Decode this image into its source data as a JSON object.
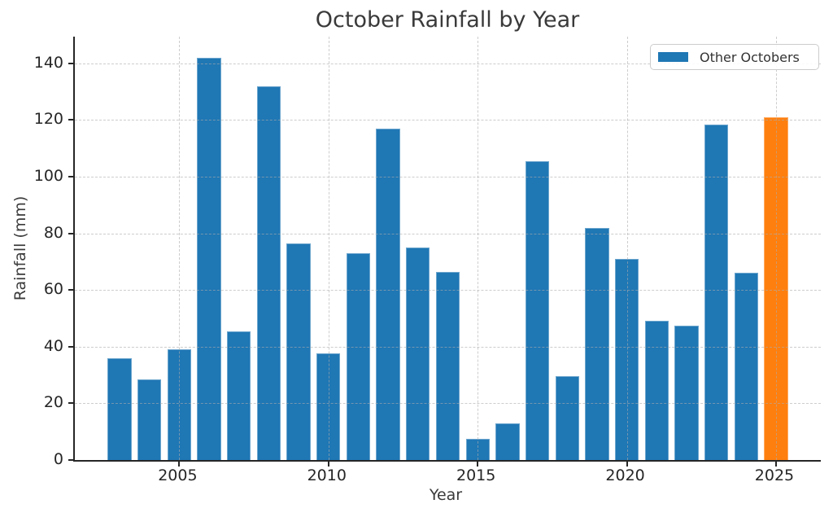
{
  "chart_data": {
    "type": "bar",
    "title": "October Rainfall by Year",
    "xlabel": "Year",
    "ylabel": "Rainfall (mm)",
    "categories": [
      2003,
      2004,
      2005,
      2006,
      2007,
      2008,
      2009,
      2010,
      2011,
      2012,
      2013,
      2014,
      2015,
      2016,
      2017,
      2018,
      2019,
      2020,
      2021,
      2022,
      2023,
      2024,
      2025
    ],
    "values": [
      36,
      28.5,
      39,
      142,
      45.5,
      132,
      76.5,
      37.5,
      73,
      117,
      75,
      66.5,
      7.6,
      13,
      105.5,
      29.5,
      82,
      71,
      49,
      47.5,
      118.5,
      66,
      121
    ],
    "bar_color": "#1f77b4",
    "bar_width": 0.8,
    "highlight": {
      "category": 2025,
      "color": "#ff7f0e"
    },
    "legend": {
      "label": "Other Octobers",
      "swatch_color": "#1f77b4",
      "position": "upper right"
    },
    "grid": true,
    "grid_over_bars": true,
    "xlim": [
      2001.5,
      2026.5
    ],
    "ylim": [
      0,
      149.4
    ],
    "xticks": [
      2005,
      2010,
      2015,
      2020,
      2025
    ],
    "yticks": [
      0,
      20,
      40,
      60,
      80,
      100,
      120,
      140
    ]
  }
}
